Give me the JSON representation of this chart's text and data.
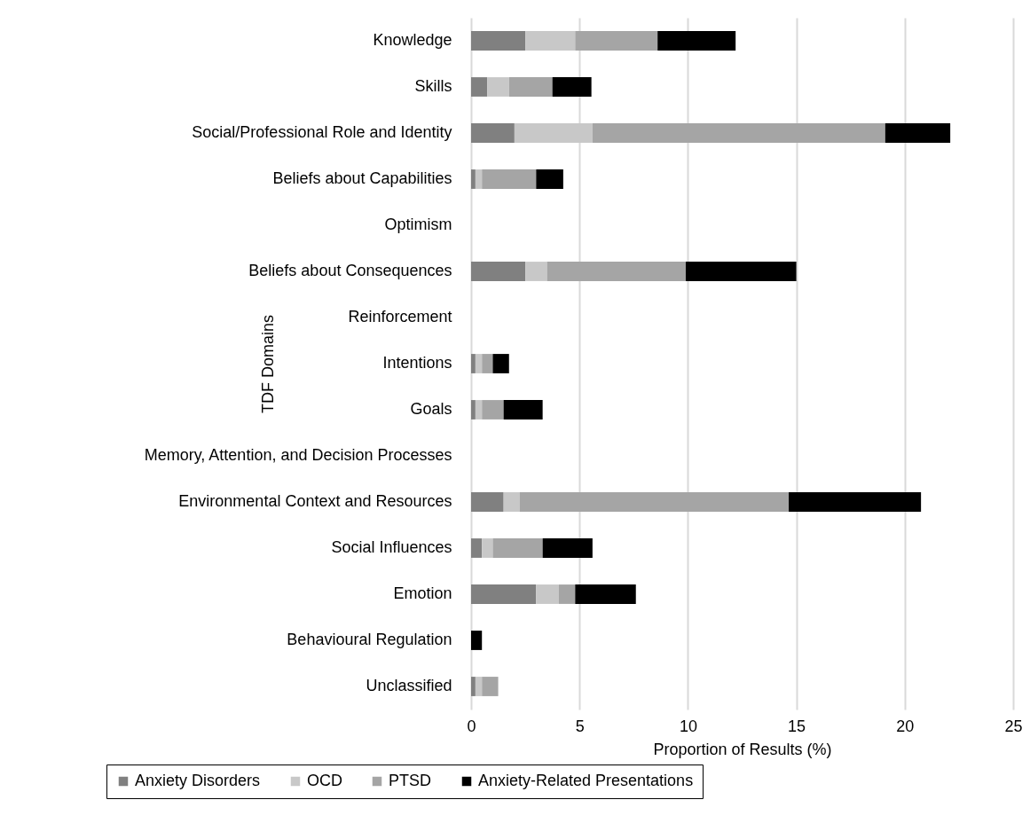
{
  "chart_data": {
    "type": "bar",
    "orientation": "horizontal",
    "stacked": true,
    "xlabel": "Proportion of Results (%)",
    "ylabel": "TDF Domains",
    "categories": [
      "Knowledge",
      "Skills",
      "Social/Professional Role and Identity",
      "Beliefs about Capabilities",
      "Optimism",
      "Beliefs about Consequences",
      "Reinforcement",
      "Intentions",
      "Goals",
      "Memory, Attention, and Decision Processes",
      "Environmental Context and Resources",
      "Social Influences",
      "Emotion",
      "Behavioural Regulation",
      "Unclassified"
    ],
    "series": [
      {
        "name": "Anxiety Disorders",
        "color": "#808080",
        "values": [
          2.5,
          0.75,
          2.0,
          0.2,
          null,
          2.5,
          null,
          0.2,
          0.2,
          null,
          1.5,
          0.5,
          3.0,
          null,
          0.2
        ]
      },
      {
        "name": "OCD",
        "color": "#c8c8c8",
        "values": [
          2.3,
          1.0,
          3.6,
          0.3,
          null,
          1.0,
          null,
          0.3,
          0.3,
          null,
          0.75,
          0.5,
          1.05,
          null,
          0.3
        ]
      },
      {
        "name": "PTSD",
        "color": "#a5a5a5",
        "values": [
          3.8,
          2.0,
          13.5,
          2.5,
          null,
          6.4,
          null,
          0.5,
          1.0,
          null,
          12.4,
          2.3,
          0.75,
          null,
          0.75
        ]
      },
      {
        "name": "Anxiety-Related Presentations",
        "color": "#000000",
        "values": [
          3.6,
          1.8,
          3.0,
          1.25,
          null,
          5.1,
          null,
          0.75,
          1.8,
          null,
          6.1,
          2.3,
          2.8,
          0.5,
          null
        ]
      }
    ],
    "xlim": [
      0,
      25
    ],
    "xticks": [
      0,
      5,
      10,
      15,
      20,
      25
    ],
    "grid": "x",
    "legend": "bottom"
  }
}
